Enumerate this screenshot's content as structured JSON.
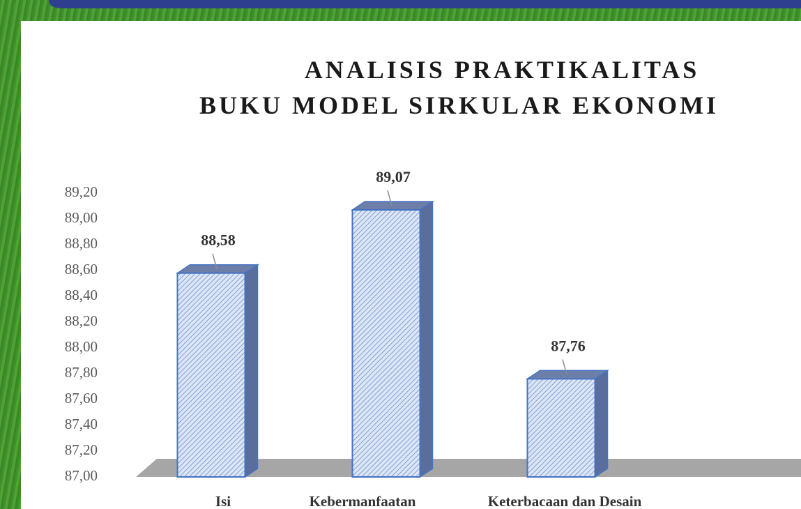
{
  "chart_data": {
    "type": "bar",
    "title": [
      "ANALISIS PRAKTIKALITAS",
      "BUKU MODEL SIRKULAR EKONOMI"
    ],
    "categories": [
      "Isi",
      "Kebermanfaatan",
      "Keterbacaan dan Desain"
    ],
    "values": [
      88.58,
      89.07,
      87.76
    ],
    "value_labels": [
      "88,58",
      "89,07",
      "87,76"
    ],
    "color": "#4472c4",
    "ylim": [
      87,
      89.2
    ],
    "yticks": [
      {
        "value": 87,
        "label": "87,00"
      },
      {
        "value": 87.2,
        "label": "87,20"
      },
      {
        "value": 87.4,
        "label": "87,40"
      },
      {
        "value": 87.6,
        "label": "87,60"
      },
      {
        "value": 87.8,
        "label": "87,80"
      },
      {
        "value": 88,
        "label": "88,00"
      },
      {
        "value": 88.2,
        "label": "88,20"
      },
      {
        "value": 88.4,
        "label": "88,40"
      },
      {
        "value": 88.6,
        "label": "88,60"
      },
      {
        "value": 88.8,
        "label": "88,80"
      },
      {
        "value": 89,
        "label": "89,00"
      },
      {
        "value": 89.2,
        "label": "89,20"
      }
    ],
    "grid": false
  }
}
